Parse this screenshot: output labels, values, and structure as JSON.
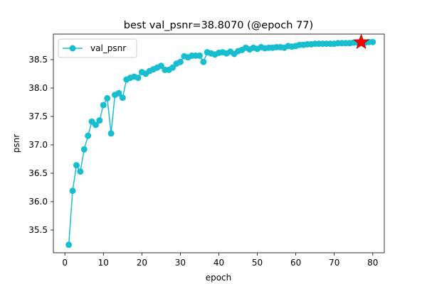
{
  "chart_data": {
    "type": "line",
    "title": "best val_psnr=38.8070 (@epoch 77)",
    "xlabel": "epoch",
    "ylabel": "psnr",
    "xlim": [
      -3,
      83
    ],
    "ylim": [
      35.1,
      38.95
    ],
    "xticks": [
      0,
      10,
      20,
      30,
      40,
      50,
      60,
      70,
      80
    ],
    "yticks": [
      35.5,
      36.0,
      36.5,
      37.0,
      37.5,
      38.0,
      38.5
    ],
    "ytick_labels": [
      "35.5",
      "36.0",
      "36.5",
      "37.0",
      "37.5",
      "38.0",
      "38.5"
    ],
    "grid": false,
    "legend": "upper left",
    "series": [
      {
        "name": "val_psnr",
        "color": "#17becf",
        "marker": "circle",
        "x": [
          1,
          2,
          3,
          4,
          5,
          6,
          7,
          8,
          9,
          10,
          11,
          12,
          13,
          14,
          15,
          16,
          17,
          18,
          19,
          20,
          21,
          22,
          23,
          24,
          25,
          26,
          27,
          28,
          29,
          30,
          31,
          32,
          33,
          34,
          35,
          36,
          37,
          38,
          39,
          40,
          41,
          42,
          43,
          44,
          45,
          46,
          47,
          48,
          49,
          50,
          51,
          52,
          53,
          54,
          55,
          56,
          57,
          58,
          59,
          60,
          61,
          62,
          63,
          64,
          65,
          66,
          67,
          68,
          69,
          70,
          71,
          72,
          73,
          74,
          75,
          76,
          77,
          78,
          79,
          80
        ],
        "y": [
          35.24,
          36.19,
          36.64,
          36.53,
          36.92,
          37.16,
          37.41,
          37.35,
          37.43,
          37.7,
          37.82,
          37.2,
          37.88,
          37.91,
          37.83,
          38.15,
          38.18,
          38.2,
          38.18,
          38.28,
          38.25,
          38.3,
          38.33,
          38.36,
          38.39,
          38.32,
          38.32,
          38.36,
          38.43,
          38.46,
          38.56,
          38.54,
          38.57,
          38.57,
          38.57,
          38.46,
          38.63,
          38.61,
          38.59,
          38.62,
          38.63,
          38.61,
          38.64,
          38.6,
          38.65,
          38.67,
          38.71,
          38.68,
          38.71,
          38.69,
          38.72,
          38.7,
          38.71,
          38.71,
          38.72,
          38.72,
          38.71,
          38.74,
          38.73,
          38.74,
          38.76,
          38.76,
          38.77,
          38.77,
          38.78,
          38.78,
          38.78,
          38.78,
          38.78,
          38.78,
          38.79,
          38.79,
          38.79,
          38.79,
          38.8,
          38.8,
          38.807,
          38.8,
          38.81,
          38.81
        ]
      }
    ],
    "best": {
      "epoch": 77,
      "value": 38.807,
      "marker": "star",
      "color": "#ff0000"
    }
  }
}
